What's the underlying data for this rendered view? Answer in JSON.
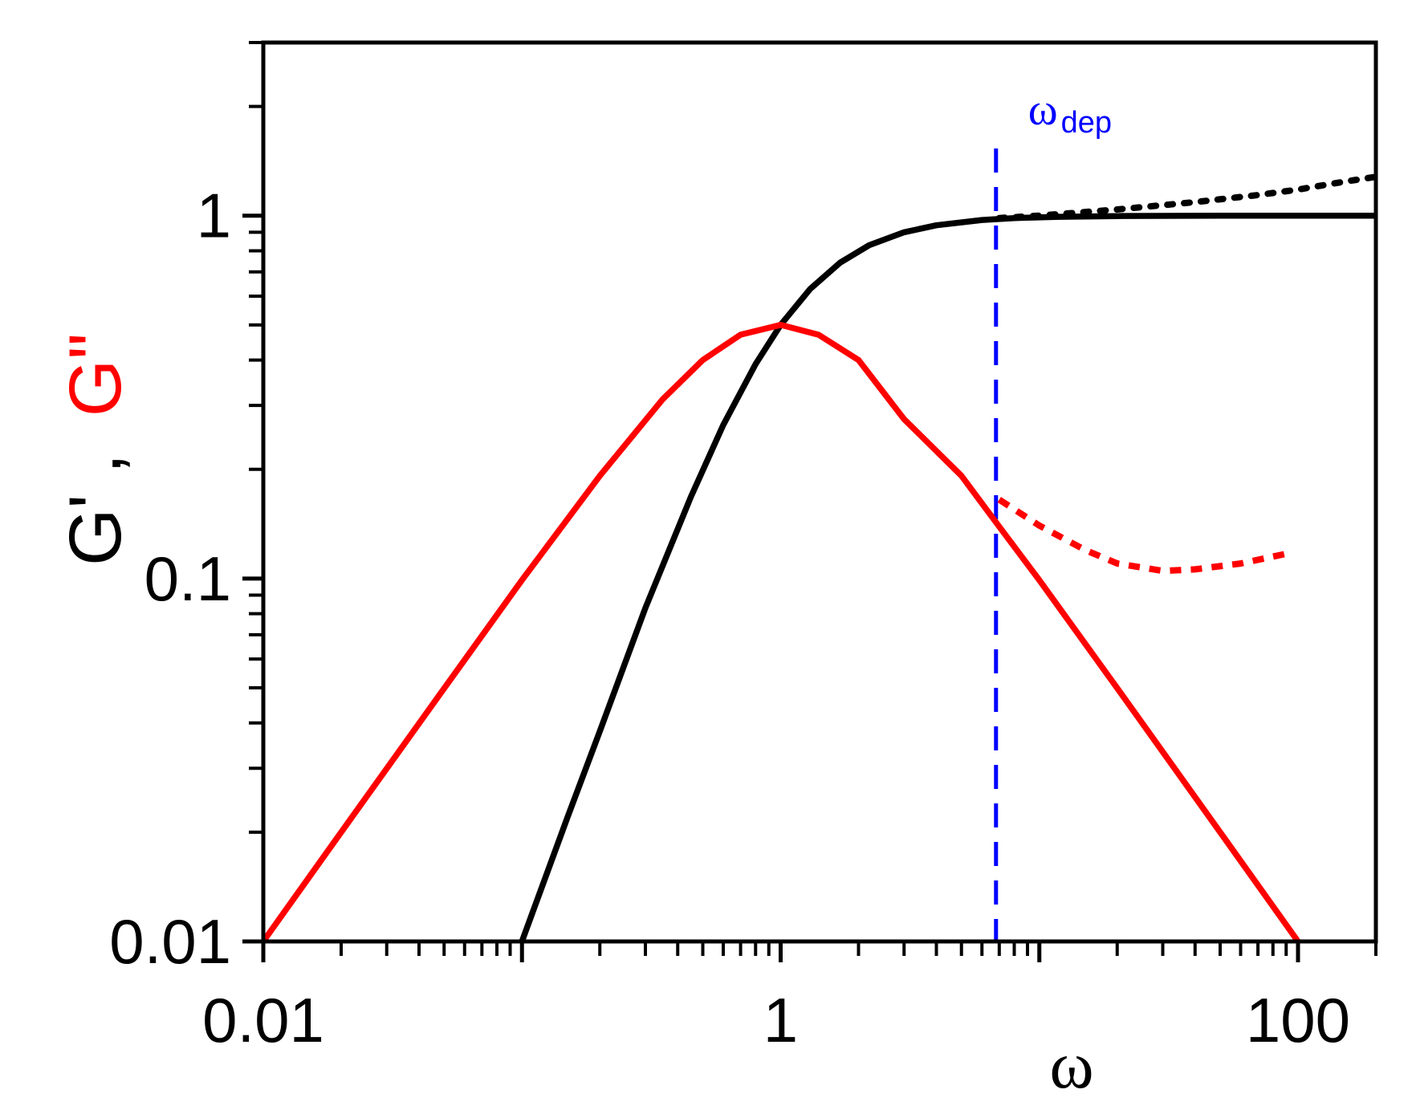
{
  "chart_data": {
    "type": "line",
    "title": "",
    "xlabel": "ω",
    "ylabel_parts": [
      {
        "text": "G'",
        "color": "#000000"
      },
      {
        "text": ",",
        "color": "#000000"
      },
      {
        "text": "G\"",
        "color": "#ff0000"
      }
    ],
    "x_scale": "log",
    "y_scale": "log",
    "xlim": [
      0.01,
      200
    ],
    "ylim": [
      0.01,
      3.0
    ],
    "x_tick_labels": [
      {
        "value": 0.01,
        "label": "0.01"
      },
      {
        "value": 1,
        "label": "1"
      },
      {
        "value": 100,
        "label": "100"
      }
    ],
    "y_tick_labels": [
      {
        "value": 0.01,
        "label": "0.01"
      },
      {
        "value": 0.1,
        "label": "0.1"
      },
      {
        "value": 1,
        "label": "1"
      }
    ],
    "series": [
      {
        "name": "G'",
        "color": "#000000",
        "style": "solid",
        "x": [
          0.1,
          0.15,
          0.2,
          0.3,
          0.45,
          0.6,
          0.8,
          1.0,
          1.3,
          1.7,
          2.2,
          3.0,
          4.0,
          6.0,
          8.0,
          12.0,
          20.0,
          50.0,
          100.0,
          200.0
        ],
        "y": [
          0.01,
          0.022,
          0.038,
          0.083,
          0.168,
          0.265,
          0.39,
          0.5,
          0.628,
          0.743,
          0.829,
          0.9,
          0.941,
          0.973,
          0.985,
          0.993,
          0.9975,
          0.9996,
          0.9999,
          1.0
        ]
      },
      {
        "name": "G\"",
        "color": "#ff0000",
        "style": "solid",
        "x": [
          0.01,
          0.02,
          0.05,
          0.1,
          0.2,
          0.35,
          0.5,
          0.7,
          1.0,
          1.4,
          2.0,
          3.0,
          5.0,
          7.0,
          10.0,
          20.0,
          50.0,
          100.0
        ],
        "y": [
          0.01,
          0.02,
          0.0498,
          0.099,
          0.192,
          0.312,
          0.4,
          0.47,
          0.5,
          0.47,
          0.4,
          0.275,
          0.192,
          0.139,
          0.099,
          0.0499,
          0.02,
          0.01
        ]
      },
      {
        "name": "G' (dotted)",
        "color": "#000000",
        "style": "dotted",
        "x": [
          7.0,
          10.0,
          20.0,
          40.0,
          70.0,
          100.0,
          150.0,
          200.0
        ],
        "y": [
          0.985,
          1.0,
          1.04,
          1.09,
          1.14,
          1.18,
          1.24,
          1.28
        ]
      },
      {
        "name": "G\" (dotted)",
        "color": "#ff0000",
        "style": "dotted",
        "x": [
          7.0,
          10.0,
          15.0,
          20.0,
          30.0,
          40.0,
          60.0,
          90.0
        ],
        "y": [
          0.165,
          0.14,
          0.12,
          0.11,
          0.105,
          0.106,
          0.11,
          0.117
        ]
      }
    ],
    "vertical_lines": [
      {
        "name": "ω_dep",
        "x": 6.8,
        "color": "#0000ff",
        "style": "dashed"
      }
    ],
    "annotations": [
      {
        "main": "ω",
        "sub": "dep",
        "x": 6.8,
        "y": 1.55,
        "color": "#0000ff"
      }
    ]
  }
}
